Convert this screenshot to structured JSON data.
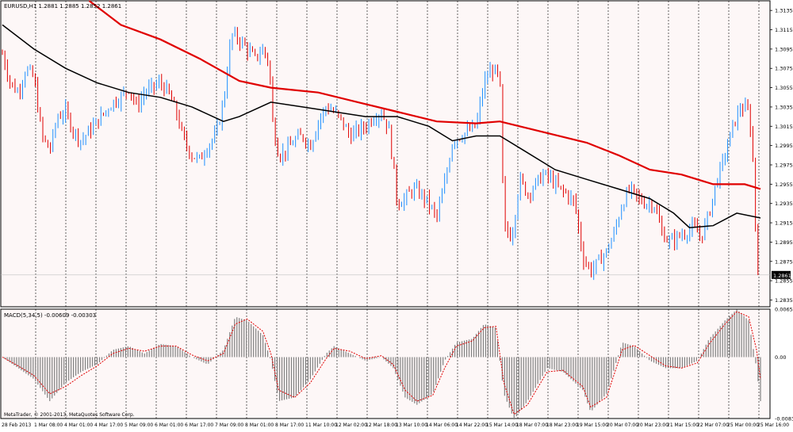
{
  "window": {
    "symbol_header": "EURUSD,H1  1.2881 1.2885 1.2852 1.2861",
    "copyright": "MetaTrader, © 2001-2013, MetaQuotes Software Corp."
  },
  "colors": {
    "background": "#fdf7f7",
    "grid": "#000000",
    "bull": "#1e90ff",
    "bear": "#e00000",
    "ma_fast": "#000000",
    "ma_slow": "#e00000",
    "macd_hist": "#808080",
    "macd_signal": "#e00000",
    "price_marker": "#000000"
  },
  "chart_data": [
    {
      "type": "candlestick",
      "symbol": "EURUSD",
      "timeframe": "H1",
      "ohlc_last": {
        "open": 1.2881,
        "high": 1.2885,
        "low": 1.2852,
        "close": 1.2861
      },
      "current_price_label": "1.2861",
      "ylim": [
        1.2828,
        1.3145
      ],
      "y_ticks": [
        "1.3135",
        "1.3115",
        "1.3095",
        "1.3075",
        "1.3055",
        "1.3035",
        "1.3015",
        "1.2995",
        "1.2975",
        "1.2955",
        "1.2935",
        "1.2915",
        "1.2895",
        "1.2875",
        "1.2855",
        "1.2835"
      ],
      "x_ticks": [
        "28 Feb 2013",
        "1 Mar 08:00",
        "4 Mar 01:00",
        "4 Mar 17:00",
        "5 Mar 09:00",
        "6 Mar 01:00",
        "6 Mar 17:00",
        "7 Mar 09:00",
        "8 Mar 01:00",
        "8 Mar 17:00",
        "11 Mar 10:00",
        "12 Mar 02:00",
        "12 Mar 18:00",
        "13 Mar 10:00",
        "14 Mar 06:00",
        "14 Mar 22:00",
        "15 Mar 14:00",
        "18 Mar 07:00",
        "18 Mar 23:00",
        "19 Mar 15:00",
        "20 Mar 07:00",
        "20 Mar 23:00",
        "21 Mar 15:00",
        "22 Mar 07:00",
        "25 Mar 00:00",
        "25 Mar 16:00"
      ],
      "close_path": [
        [
          0,
          1.309
        ],
        [
          10,
          1.306
        ],
        [
          20,
          1.305
        ],
        [
          30,
          1.3075
        ],
        [
          40,
          1.3065
        ],
        [
          50,
          1.3005
        ],
        [
          60,
          1.299
        ],
        [
          70,
          1.3025
        ],
        [
          80,
          1.303
        ],
        [
          90,
          1.301
        ],
        [
          100,
          1.3
        ],
        [
          110,
          1.301
        ],
        [
          120,
          1.302
        ],
        [
          130,
          1.303
        ],
        [
          140,
          1.304
        ],
        [
          150,
          1.3045
        ],
        [
          160,
          1.3055
        ],
        [
          170,
          1.3035
        ],
        [
          180,
          1.305
        ],
        [
          190,
          1.3055
        ],
        [
          200,
          1.306
        ],
        [
          210,
          1.305
        ],
        [
          220,
          1.303
        ],
        [
          230,
          1.3
        ],
        [
          240,
          1.2985
        ],
        [
          250,
          1.298
        ],
        [
          260,
          1.2995
        ],
        [
          270,
          1.3005
        ],
        [
          280,
          1.304
        ],
        [
          290,
          1.311
        ],
        [
          300,
          1.3105
        ],
        [
          310,
          1.3095
        ],
        [
          320,
          1.3085
        ],
        [
          330,
          1.3095
        ],
        [
          338,
          1.308
        ],
        [
          342,
          1.302
        ],
        [
          350,
          1.2985
        ],
        [
          360,
          1.299
        ],
        [
          370,
          1.3
        ],
        [
          380,
          1.3005
        ],
        [
          390,
          1.2995
        ],
        [
          400,
          1.302
        ],
        [
          410,
          1.3035
        ],
        [
          420,
          1.303
        ],
        [
          430,
          1.302
        ],
        [
          440,
          1.3005
        ],
        [
          450,
          1.301
        ],
        [
          460,
          1.3015
        ],
        [
          470,
          1.3025
        ],
        [
          480,
          1.303
        ],
        [
          490,
          1.301
        ],
        [
          500,
          1.2935
        ],
        [
          510,
          1.294
        ],
        [
          520,
          1.295
        ],
        [
          530,
          1.2945
        ],
        [
          540,
          1.2935
        ],
        [
          550,
          1.292
        ],
        [
          560,
          1.2955
        ],
        [
          570,
          1.3
        ],
        [
          580,
          1.3005
        ],
        [
          590,
          1.301
        ],
        [
          600,
          1.3015
        ],
        [
          610,
          1.306
        ],
        [
          620,
          1.3075
        ],
        [
          630,
          1.3065
        ],
        [
          635,
          1.291
        ],
        [
          645,
          1.29
        ],
        [
          655,
          1.296
        ],
        [
          665,
          1.2945
        ],
        [
          675,
          1.2955
        ],
        [
          685,
          1.2965
        ],
        [
          695,
          1.296
        ],
        [
          705,
          1.295
        ],
        [
          715,
          1.2945
        ],
        [
          725,
          1.2935
        ],
        [
          735,
          1.288
        ],
        [
          745,
          1.2865
        ],
        [
          755,
          1.2875
        ],
        [
          765,
          1.2885
        ],
        [
          775,
          1.2905
        ],
        [
          785,
          1.2935
        ],
        [
          795,
          1.295
        ],
        [
          805,
          1.294
        ],
        [
          815,
          1.2935
        ],
        [
          825,
          1.2935
        ],
        [
          835,
          1.2905
        ],
        [
          845,
          1.2895
        ],
        [
          855,
          1.29
        ],
        [
          865,
          1.2905
        ],
        [
          875,
          1.291
        ],
        [
          885,
          1.29
        ],
        [
          895,
          1.2925
        ],
        [
          905,
          1.296
        ],
        [
          915,
          1.2985
        ],
        [
          925,
          1.3015
        ],
        [
          935,
          1.3035
        ],
        [
          945,
          1.303
        ],
        [
          950,
          1.299
        ],
        [
          955,
          1.288
        ],
        [
          960,
          1.2861
        ]
      ],
      "series": [
        {
          "label": "moving average (black)",
          "color": "#000000",
          "points": [
            [
              0,
              1.312
            ],
            [
              40,
              1.3095
            ],
            [
              80,
              1.3075
            ],
            [
              120,
              1.306
            ],
            [
              160,
              1.305
            ],
            [
              200,
              1.3045
            ],
            [
              240,
              1.3035
            ],
            [
              280,
              1.302
            ],
            [
              300,
              1.3025
            ],
            [
              340,
              1.304
            ],
            [
              380,
              1.3035
            ],
            [
              420,
              1.303
            ],
            [
              460,
              1.3025
            ],
            [
              500,
              1.3025
            ],
            [
              540,
              1.3015
            ],
            [
              570,
              1.3
            ],
            [
              600,
              1.3005
            ],
            [
              630,
              1.3005
            ],
            [
              660,
              1.299
            ],
            [
              700,
              1.297
            ],
            [
              740,
              1.296
            ],
            [
              780,
              1.295
            ],
            [
              820,
              1.294
            ],
            [
              850,
              1.2925
            ],
            [
              870,
              1.291
            ],
            [
              900,
              1.2912
            ],
            [
              930,
              1.2925
            ],
            [
              960,
              1.292
            ]
          ]
        },
        {
          "label": "moving average (red)",
          "color": "#e00000",
          "points": [
            [
              110,
              1.3145
            ],
            [
              150,
              1.312
            ],
            [
              200,
              1.3105
            ],
            [
              250,
              1.3085
            ],
            [
              300,
              1.3062
            ],
            [
              340,
              1.3055
            ],
            [
              400,
              1.305
            ],
            [
              450,
              1.304
            ],
            [
              500,
              1.303
            ],
            [
              550,
              1.302
            ],
            [
              600,
              1.3018
            ],
            [
              630,
              1.302
            ],
            [
              680,
              1.301
            ],
            [
              740,
              1.2998
            ],
            [
              780,
              1.2985
            ],
            [
              820,
              1.297
            ],
            [
              860,
              1.2965
            ],
            [
              900,
              1.2955
            ],
            [
              940,
              1.2955
            ],
            [
              960,
              1.295
            ]
          ]
        }
      ]
    },
    {
      "type": "histogram",
      "indicator_label": "MACD(5,34,5) -0.00609 -0.00303",
      "ylim": [
        -0.00837,
        0.00654
      ],
      "y_ticks": [
        "0.00654",
        "0.00",
        "-0.00837"
      ],
      "histogram_path": [
        [
          0,
          0.0
        ],
        [
          20,
          -0.0015
        ],
        [
          40,
          -0.003
        ],
        [
          60,
          -0.006
        ],
        [
          80,
          -0.0035
        ],
        [
          100,
          -0.002
        ],
        [
          120,
          -0.001
        ],
        [
          140,
          0.001
        ],
        [
          160,
          0.0015
        ],
        [
          180,
          0.0005
        ],
        [
          200,
          0.0018
        ],
        [
          220,
          0.0015
        ],
        [
          240,
          0.0
        ],
        [
          260,
          -0.001
        ],
        [
          280,
          0.001
        ],
        [
          295,
          0.0055
        ],
        [
          310,
          0.005
        ],
        [
          330,
          0.003
        ],
        [
          340,
          -0.0005
        ],
        [
          350,
          -0.006
        ],
        [
          370,
          -0.0055
        ],
        [
          390,
          -0.003
        ],
        [
          410,
          0.0005
        ],
        [
          420,
          0.0015
        ],
        [
          440,
          0.0005
        ],
        [
          460,
          -0.0005
        ],
        [
          480,
          0.0
        ],
        [
          495,
          -0.0015
        ],
        [
          510,
          -0.0055
        ],
        [
          525,
          -0.0065
        ],
        [
          545,
          -0.005
        ],
        [
          560,
          -0.0005
        ],
        [
          575,
          0.002
        ],
        [
          595,
          0.0025
        ],
        [
          610,
          0.0045
        ],
        [
          625,
          0.004
        ],
        [
          635,
          -0.005
        ],
        [
          648,
          -0.0085
        ],
        [
          665,
          -0.006
        ],
        [
          690,
          -0.0015
        ],
        [
          710,
          -0.002
        ],
        [
          735,
          -0.0045
        ],
        [
          745,
          -0.0075
        ],
        [
          765,
          -0.005
        ],
        [
          785,
          0.002
        ],
        [
          800,
          0.0015
        ],
        [
          820,
          -0.0005
        ],
        [
          840,
          -0.0015
        ],
        [
          860,
          -0.0015
        ],
        [
          880,
          -0.0005
        ],
        [
          895,
          0.0025
        ],
        [
          915,
          0.005
        ],
        [
          930,
          0.0065
        ],
        [
          945,
          0.005
        ],
        [
          955,
          -0.0015
        ],
        [
          960,
          -0.006
        ]
      ],
      "signal_path": [
        [
          0,
          0.0
        ],
        [
          20,
          -0.0012
        ],
        [
          40,
          -0.0025
        ],
        [
          60,
          -0.005
        ],
        [
          80,
          -0.004
        ],
        [
          100,
          -0.0025
        ],
        [
          120,
          -0.0012
        ],
        [
          140,
          0.0005
        ],
        [
          160,
          0.0012
        ],
        [
          180,
          0.0008
        ],
        [
          200,
          0.0015
        ],
        [
          220,
          0.0015
        ],
        [
          240,
          0.0003
        ],
        [
          260,
          -0.0005
        ],
        [
          280,
          0.0005
        ],
        [
          295,
          0.0045
        ],
        [
          310,
          0.0052
        ],
        [
          330,
          0.0035
        ],
        [
          340,
          0.0005
        ],
        [
          350,
          -0.0045
        ],
        [
          370,
          -0.0055
        ],
        [
          390,
          -0.0035
        ],
        [
          410,
          -0.0002
        ],
        [
          420,
          0.0012
        ],
        [
          440,
          0.0008
        ],
        [
          460,
          -0.0002
        ],
        [
          480,
          0.0002
        ],
        [
          495,
          -0.001
        ],
        [
          510,
          -0.0045
        ],
        [
          525,
          -0.006
        ],
        [
          545,
          -0.0052
        ],
        [
          560,
          -0.0015
        ],
        [
          575,
          0.0015
        ],
        [
          595,
          0.0022
        ],
        [
          610,
          0.004
        ],
        [
          625,
          0.0042
        ],
        [
          635,
          -0.0035
        ],
        [
          648,
          -0.0078
        ],
        [
          665,
          -0.0065
        ],
        [
          690,
          -0.002
        ],
        [
          710,
          -0.0018
        ],
        [
          735,
          -0.004
        ],
        [
          745,
          -0.0068
        ],
        [
          765,
          -0.0055
        ],
        [
          785,
          0.001
        ],
        [
          800,
          0.0016
        ],
        [
          820,
          0.0002
        ],
        [
          840,
          -0.0012
        ],
        [
          860,
          -0.0015
        ],
        [
          880,
          -0.0008
        ],
        [
          895,
          0.0018
        ],
        [
          915,
          0.0045
        ],
        [
          930,
          0.0062
        ],
        [
          945,
          0.0055
        ],
        [
          955,
          0.001
        ],
        [
          960,
          -0.003
        ]
      ]
    }
  ]
}
